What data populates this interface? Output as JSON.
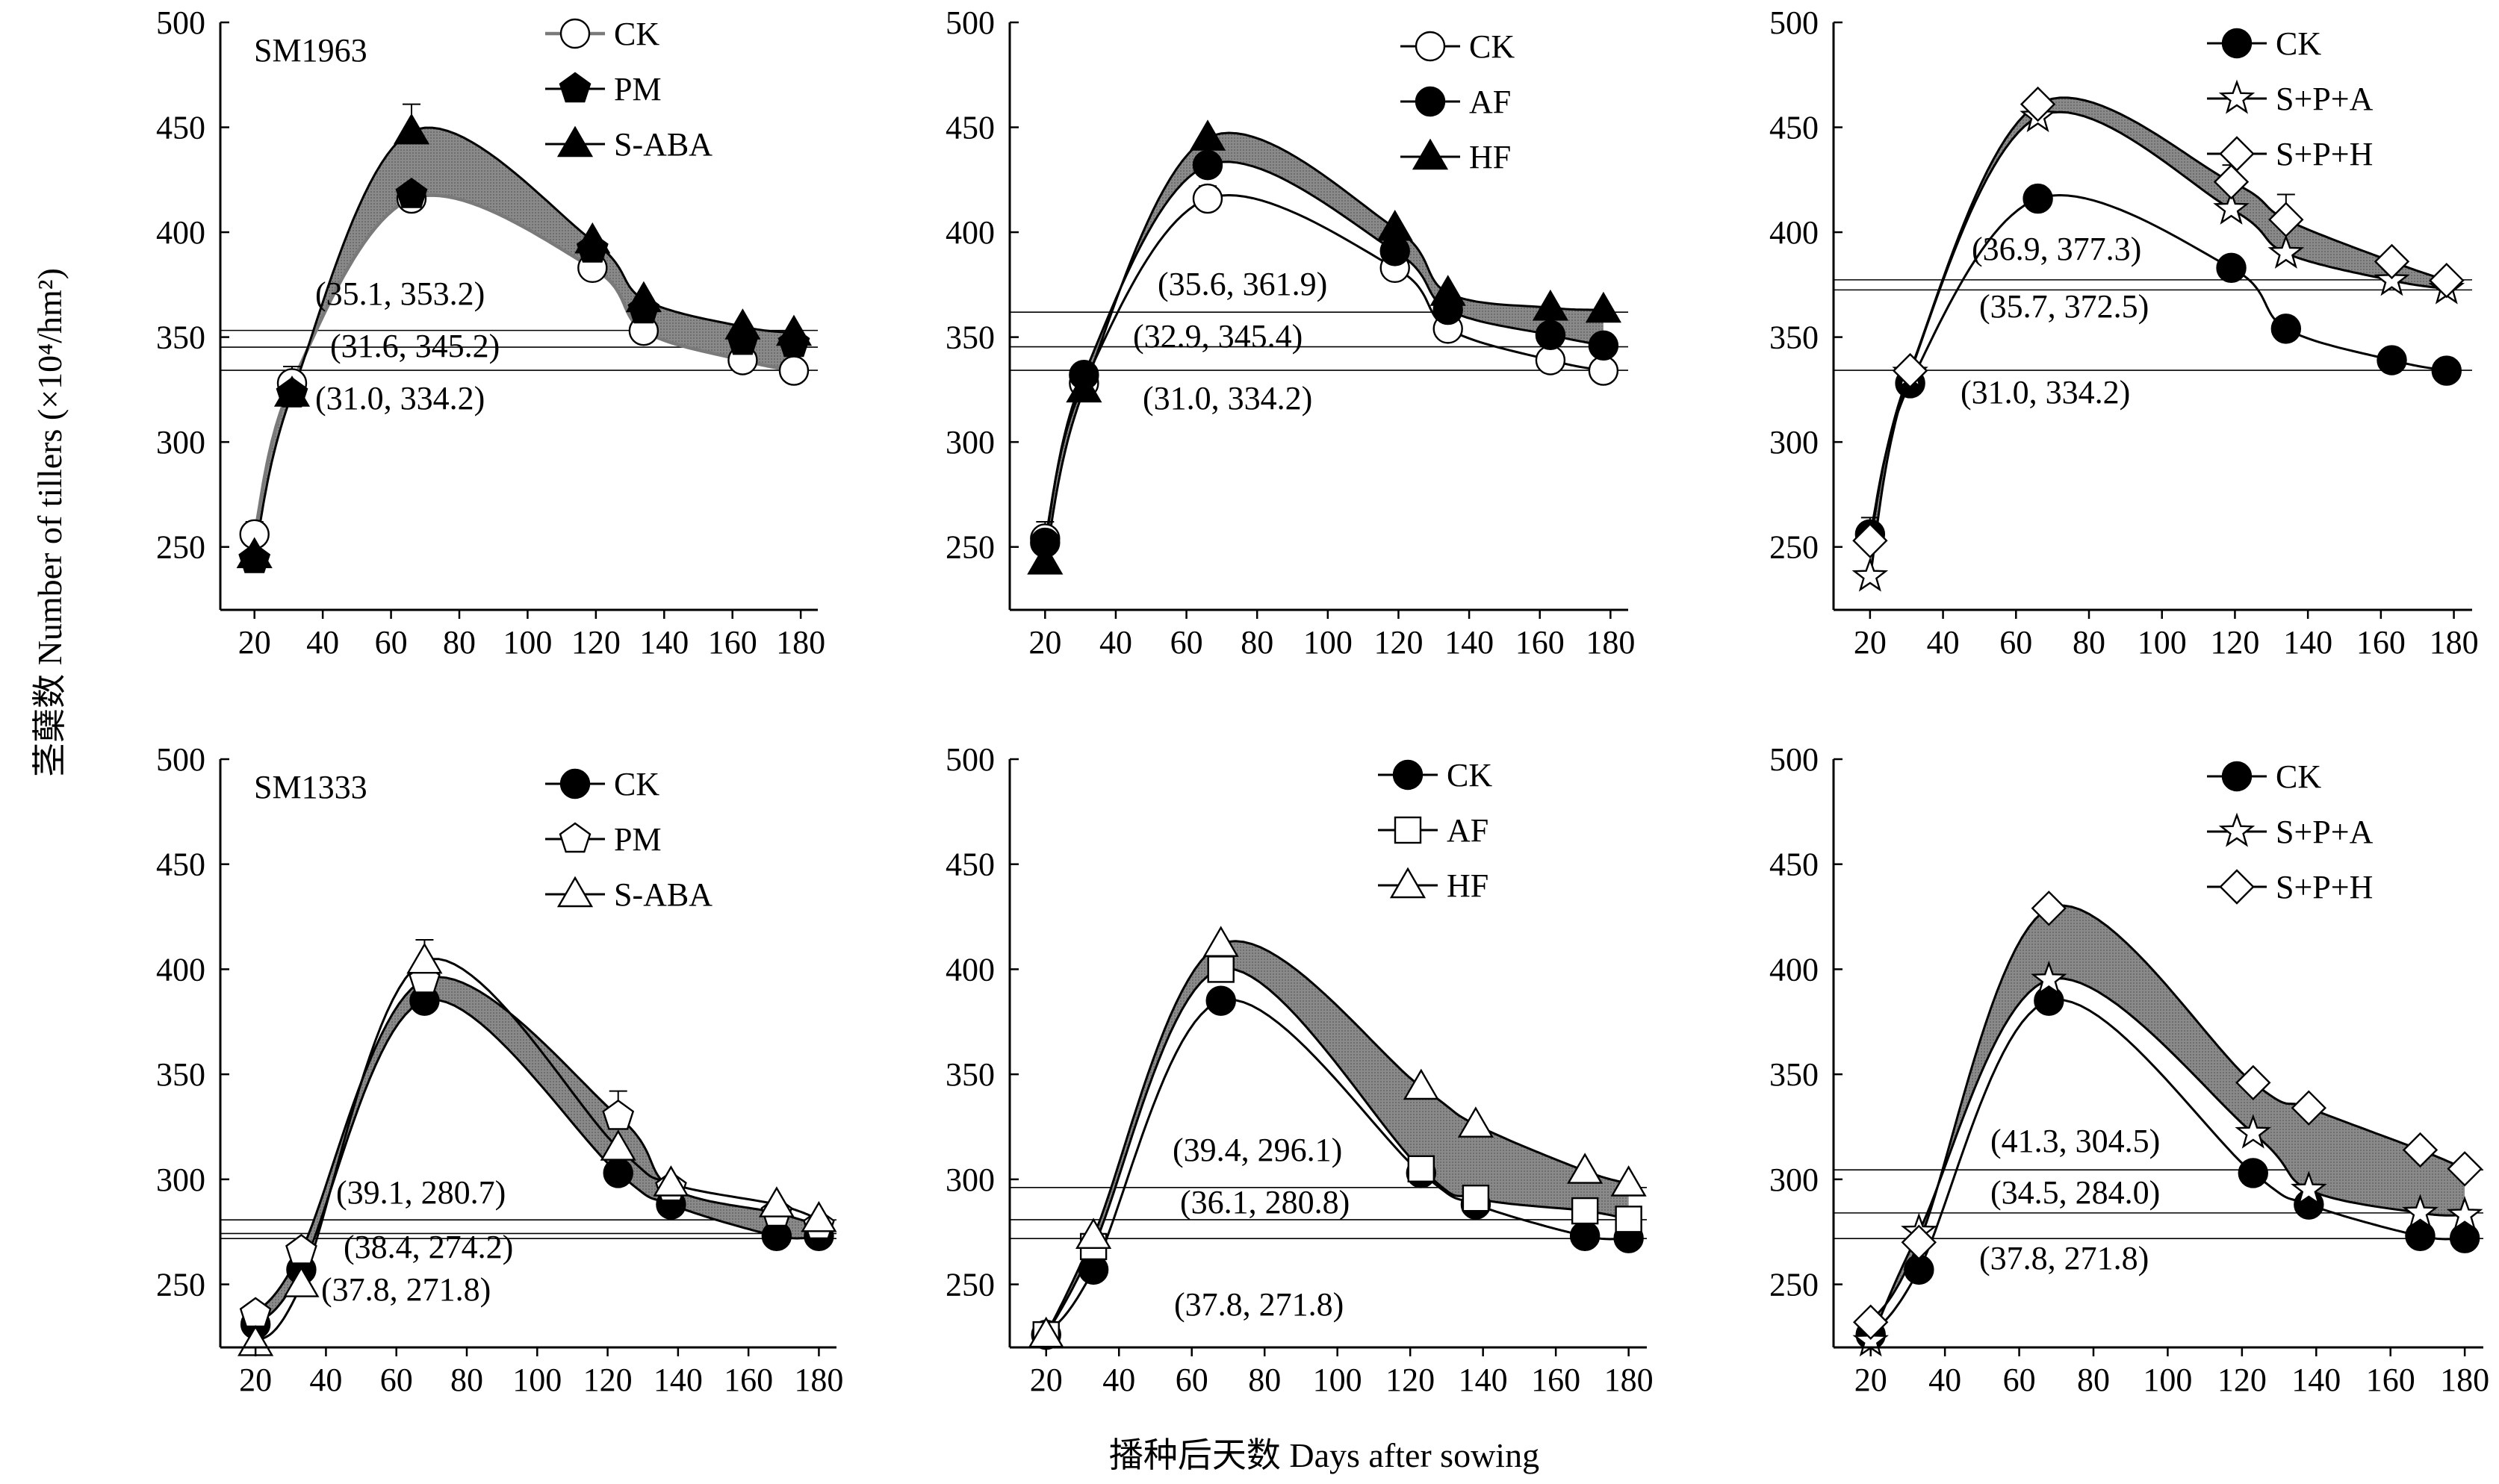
{
  "figure": {
    "ylabel": "茎蘖数 Number of tillers (×10⁴/hm²)",
    "xlabel": "播种后天数 Days after sowing"
  },
  "chart_data": [
    {
      "type": "line",
      "variety": "SM1963",
      "xlim": [
        10,
        185
      ],
      "ylim": [
        220,
        500
      ],
      "xticks": [
        20,
        40,
        60,
        80,
        100,
        120,
        140,
        160,
        180
      ],
      "yticks": [
        250,
        300,
        350,
        400,
        450,
        500
      ],
      "shade": [
        "CK",
        "S-ABA"
      ],
      "series": [
        {
          "name": "CK",
          "marker": "circle-open",
          "line": "gray",
          "x": [
            20,
            31,
            66,
            119,
            134,
            163,
            178
          ],
          "y": [
            256,
            328,
            416,
            383,
            353,
            339,
            334
          ],
          "err": [
            6,
            8,
            6,
            6,
            6,
            6,
            5
          ]
        },
        {
          "name": "PM",
          "marker": "pentagon-filled",
          "line": "none",
          "x": [
            20,
            31,
            66,
            119,
            134,
            163,
            178
          ],
          "y": [
            244,
            323,
            418,
            392,
            363,
            348,
            347
          ],
          "err": [
            0,
            0,
            0,
            0,
            0,
            0,
            0
          ]
        },
        {
          "name": "S-ABA",
          "marker": "triangle-filled",
          "line": "black",
          "x": [
            20,
            31,
            66,
            119,
            134,
            163,
            178
          ],
          "y": [
            246,
            323,
            448,
            396,
            368,
            355,
            352
          ],
          "err": [
            0,
            0,
            13,
            0,
            0,
            0,
            0
          ]
        }
      ],
      "hlines": [
        353.2,
        345.2,
        334.2
      ],
      "annotations": [
        "(35.1, 353.2)",
        "(31.6, 345.2)",
        "(31.0, 334.2)"
      ]
    },
    {
      "type": "line",
      "variety": "",
      "xlim": [
        10,
        185
      ],
      "ylim": [
        220,
        500
      ],
      "xticks": [
        20,
        40,
        60,
        80,
        100,
        120,
        140,
        160,
        180
      ],
      "yticks": [
        250,
        300,
        350,
        400,
        450,
        500
      ],
      "shade": [
        "AF",
        "HF"
      ],
      "series": [
        {
          "name": "CK",
          "marker": "circle-open",
          "line": "black",
          "x": [
            20,
            31,
            66,
            119,
            134,
            163,
            178
          ],
          "y": [
            254,
            328,
            416,
            383,
            354,
            339,
            334
          ],
          "err": [
            8,
            8,
            6,
            10,
            5,
            5,
            5
          ]
        },
        {
          "name": "AF",
          "marker": "circle-filled",
          "line": "black",
          "x": [
            20,
            31,
            66,
            119,
            134,
            163,
            178
          ],
          "y": [
            252,
            332,
            432,
            391,
            363,
            351,
            346
          ],
          "err": [
            0,
            0,
            0,
            0,
            0,
            0,
            0
          ]
        },
        {
          "name": "HF",
          "marker": "triangle-filled",
          "line": "black",
          "x": [
            20,
            31,
            66,
            119,
            134,
            163,
            178
          ],
          "y": [
            243,
            325,
            445,
            402,
            371,
            364,
            363
          ],
          "err": [
            8,
            0,
            0,
            0,
            0,
            0,
            0
          ]
        }
      ],
      "hlines": [
        361.9,
        345.4,
        334.2
      ],
      "annotations": [
        "(35.6, 361.9)",
        "(32.9, 345.4)",
        "(31.0, 334.2)"
      ]
    },
    {
      "type": "line",
      "variety": "",
      "xlim": [
        10,
        185
      ],
      "ylim": [
        220,
        500
      ],
      "xticks": [
        20,
        40,
        60,
        80,
        100,
        120,
        140,
        160,
        180
      ],
      "yticks": [
        250,
        300,
        350,
        400,
        450,
        500
      ],
      "shade": [
        "S+P+A",
        "S+P+H"
      ],
      "series": [
        {
          "name": "CK",
          "marker": "circle-filled",
          "line": "black",
          "x": [
            20,
            31,
            66,
            119,
            134,
            163,
            178
          ],
          "y": [
            256,
            328,
            416,
            383,
            354,
            339,
            334
          ],
          "err": [
            8,
            6,
            0,
            0,
            0,
            0,
            0
          ]
        },
        {
          "name": "S+P+A",
          "marker": "star-open",
          "line": "black",
          "x": [
            20,
            31,
            66,
            119,
            134,
            163,
            178
          ],
          "y": [
            236,
            333,
            455,
            411,
            390,
            377,
            373
          ],
          "err": [
            0,
            0,
            0,
            0,
            0,
            0,
            0
          ]
        },
        {
          "name": "S+P+H",
          "marker": "diamond-open",
          "line": "black",
          "x": [
            20,
            31,
            66,
            119,
            134,
            163,
            178
          ],
          "y": [
            253,
            334,
            461,
            424,
            406,
            386,
            377
          ],
          "err": [
            0,
            0,
            0,
            8,
            12,
            0,
            0
          ]
        }
      ],
      "hlines": [
        377.3,
        372.5,
        334.2
      ],
      "annotations": [
        "(36.9, 377.3)",
        "(35.7, 372.5)",
        "(31.0, 334.2)"
      ]
    },
    {
      "type": "line",
      "variety": "SM1333",
      "xlim": [
        10,
        185
      ],
      "ylim": [
        220,
        500
      ],
      "xticks": [
        20,
        40,
        60,
        80,
        100,
        120,
        140,
        160,
        180
      ],
      "yticks": [
        250,
        300,
        350,
        400,
        450,
        500
      ],
      "shade": [
        "CK",
        "PM"
      ],
      "series": [
        {
          "name": "CK",
          "marker": "circle-filled",
          "line": "black",
          "x": [
            20,
            33,
            68,
            123,
            138,
            168,
            180
          ],
          "y": [
            231,
            257,
            385,
            303,
            288,
            273,
            273
          ],
          "err": [
            0,
            0,
            0,
            0,
            0,
            0,
            0
          ]
        },
        {
          "name": "PM",
          "marker": "pentagon-open",
          "line": "black",
          "x": [
            20,
            33,
            68,
            123,
            138,
            168,
            180
          ],
          "y": [
            236,
            266,
            395,
            330,
            296,
            284,
            278
          ],
          "err": [
            0,
            0,
            0,
            12,
            0,
            0,
            0
          ]
        },
        {
          "name": "S-ABA",
          "marker": "triangle-open",
          "line": "black",
          "x": [
            20,
            33,
            68,
            123,
            138,
            168,
            180
          ],
          "y": [
            222,
            250,
            404,
            315,
            298,
            288,
            281
          ],
          "err": [
            0,
            0,
            10,
            0,
            0,
            0,
            0
          ]
        }
      ],
      "hlines": [
        280.7,
        274.2,
        271.8
      ],
      "annotations": [
        "(39.1, 280.7)",
        "(38.4, 274.2)",
        "(37.8, 271.8)"
      ]
    },
    {
      "type": "line",
      "variety": "",
      "xlim": [
        10,
        185
      ],
      "ylim": [
        220,
        500
      ],
      "xticks": [
        20,
        40,
        60,
        80,
        100,
        120,
        140,
        160,
        180
      ],
      "yticks": [
        250,
        300,
        350,
        400,
        450,
        500
      ],
      "shade": [
        "AF",
        "HF"
      ],
      "series": [
        {
          "name": "CK",
          "marker": "circle-filled",
          "line": "black",
          "x": [
            20,
            33,
            68,
            123,
            138,
            168,
            180
          ],
          "y": [
            226,
            257,
            385,
            303,
            288,
            273,
            272
          ],
          "err": [
            0,
            0,
            0,
            0,
            0,
            0,
            0
          ]
        },
        {
          "name": "AF",
          "marker": "square-open",
          "line": "black",
          "x": [
            20,
            33,
            68,
            123,
            138,
            168,
            180
          ],
          "y": [
            226,
            268,
            400,
            305,
            291,
            285,
            281
          ],
          "err": [
            0,
            0,
            0,
            0,
            0,
            0,
            0
          ]
        },
        {
          "name": "HF",
          "marker": "triangle-open",
          "line": "black",
          "x": [
            20,
            33,
            68,
            123,
            138,
            168,
            180
          ],
          "y": [
            226,
            273,
            412,
            344,
            326,
            304,
            298
          ],
          "err": [
            0,
            0,
            0,
            0,
            0,
            0,
            0
          ]
        }
      ],
      "hlines": [
        296.1,
        280.8,
        271.8
      ],
      "annotations": [
        "(39.4, 296.1)",
        "(36.1, 280.8)",
        "(37.8, 271.8)"
      ]
    },
    {
      "type": "line",
      "variety": "",
      "xlim": [
        10,
        185
      ],
      "ylim": [
        220,
        500
      ],
      "xticks": [
        20,
        40,
        60,
        80,
        100,
        120,
        140,
        160,
        180
      ],
      "yticks": [
        250,
        300,
        350,
        400,
        450,
        500
      ],
      "shade": [
        "S+P+A",
        "S+P+H"
      ],
      "series": [
        {
          "name": "CK",
          "marker": "circle-filled",
          "line": "black",
          "x": [
            20,
            33,
            68,
            123,
            138,
            168,
            180
          ],
          "y": [
            226,
            257,
            385,
            303,
            288,
            273,
            272
          ],
          "err": [
            0,
            0,
            0,
            0,
            0,
            0,
            0
          ]
        },
        {
          "name": "S+P+A",
          "marker": "star-open",
          "line": "black",
          "x": [
            20,
            33,
            68,
            123,
            138,
            168,
            180
          ],
          "y": [
            223,
            275,
            395,
            322,
            295,
            284,
            283
          ],
          "err": [
            0,
            0,
            0,
            0,
            0,
            0,
            0
          ]
        },
        {
          "name": "S+P+H",
          "marker": "diamond-open",
          "line": "black",
          "x": [
            20,
            33,
            68,
            123,
            138,
            168,
            180
          ],
          "y": [
            232,
            270,
            429,
            346,
            334,
            314,
            305
          ],
          "err": [
            0,
            0,
            0,
            0,
            0,
            0,
            0
          ]
        }
      ],
      "hlines": [
        304.5,
        284.0,
        271.8
      ],
      "annotations": [
        "(41.3, 304.5)",
        "(34.5, 284.0)",
        "(37.8, 271.8)"
      ]
    }
  ]
}
